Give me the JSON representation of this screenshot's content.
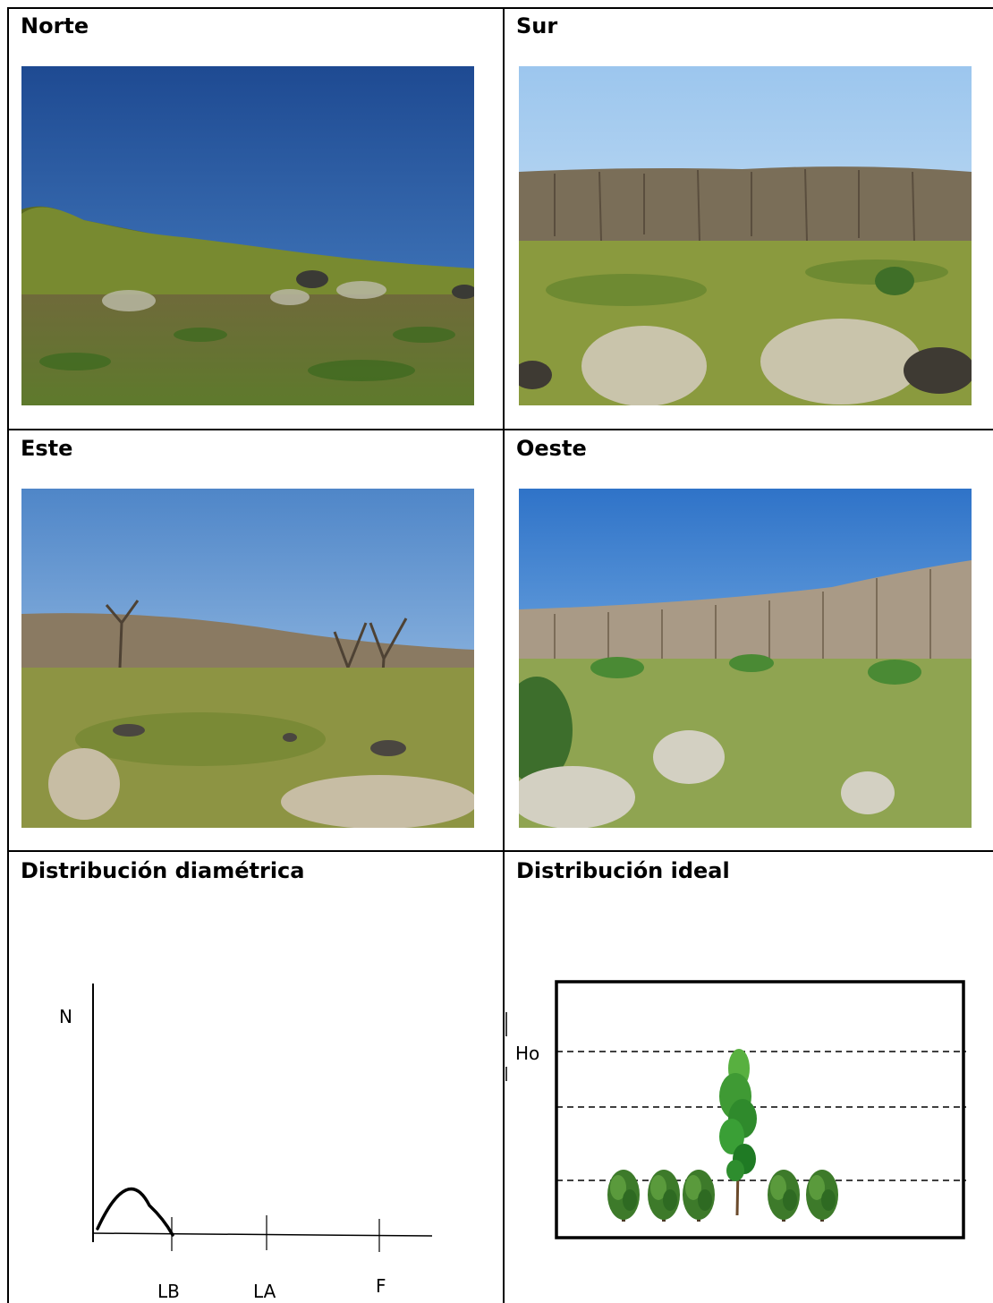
{
  "cells": {
    "north": {
      "heading": "Norte"
    },
    "south": {
      "heading": "Sur"
    },
    "east": {
      "heading": "Este"
    },
    "west": {
      "heading": "Oeste"
    },
    "diameter_distribution": {
      "heading": "Distribución diamétrica",
      "axis_y_label": "N",
      "tick_labels": [
        "LB",
        "LA",
        "F"
      ]
    },
    "ideal_distribution": {
      "heading": "Distribución ideal",
      "height_label": "Ho"
    }
  },
  "colors": {
    "sky_deep": "#1f4f9a",
    "sky_light": "#8fc0ec",
    "grass": "#7f8f3a",
    "trees_green": "#6f7f2a",
    "trees_bare": "#8a7a60",
    "shrub_green": "#3f7d2c"
  }
}
